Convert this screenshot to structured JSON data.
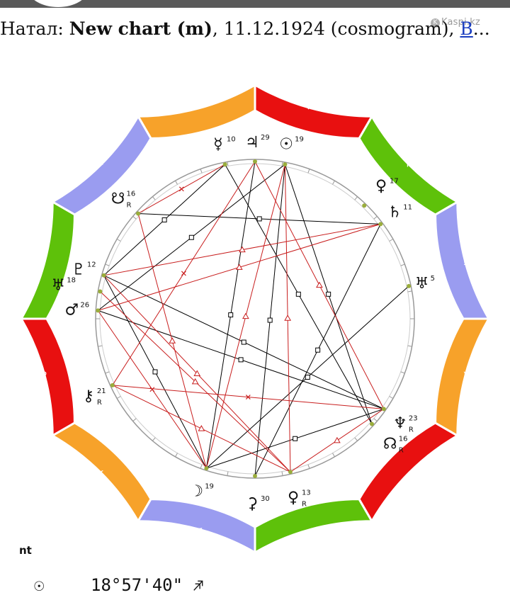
{
  "header": {
    "title_prefix": "Натал: ",
    "title_bold": "New chart (m)",
    "title_rest": ", 11.12.1924 (cosmogram), ",
    "title_link": "В",
    "title_ellipsis": "...",
    "watermark": "Kaspi.kz"
  },
  "chart": {
    "zodiac": [
      {
        "glyph": "♈",
        "color": "#e81010"
      },
      {
        "glyph": "♉",
        "color": "#f7a22a"
      },
      {
        "glyph": "♊",
        "color": "#9a9cf0"
      },
      {
        "glyph": "♋",
        "color": "#5ec10a"
      },
      {
        "glyph": "♌",
        "color": "#e81010"
      },
      {
        "glyph": "♍",
        "color": "#f7a22a"
      },
      {
        "glyph": "♎",
        "color": "#9a9cf0"
      },
      {
        "glyph": "♏",
        "color": "#5ec10a"
      },
      {
        "glyph": "♐",
        "color": "#e81010"
      },
      {
        "glyph": "♑",
        "color": "#f7a22a"
      },
      {
        "glyph": "♒",
        "color": "#9a9cf0"
      },
      {
        "glyph": "♓",
        "color": "#5ec10a"
      }
    ],
    "planets": [
      {
        "key": "moon",
        "glyph": "☽",
        "degree": "19",
        "retro": ""
      },
      {
        "key": "ceres",
        "glyph": "⚳",
        "degree": "30",
        "retro": ""
      },
      {
        "key": "venus_lower",
        "glyph": "♀",
        "degree": "13",
        "retro": "R"
      },
      {
        "key": "neptune",
        "glyph": "♆",
        "degree": "23",
        "retro": "R"
      },
      {
        "key": "node",
        "glyph": "☊",
        "degree": "16",
        "retro": "R"
      },
      {
        "key": "uranus",
        "glyph": "♅",
        "degree": "5",
        "retro": ""
      },
      {
        "key": "saturn",
        "glyph": "♄",
        "degree": "11",
        "retro": ""
      },
      {
        "key": "venus_upper",
        "glyph": "♀",
        "degree": "17",
        "retro": ""
      },
      {
        "key": "sun",
        "glyph": "☉",
        "degree": "19",
        "retro": ""
      },
      {
        "key": "jupiter",
        "glyph": "♃",
        "degree": "29",
        "retro": ""
      },
      {
        "key": "mercury",
        "glyph": "☿",
        "degree": "10",
        "retro": ""
      },
      {
        "key": "south_node",
        "glyph": "☋",
        "degree": "16",
        "retro": "R"
      },
      {
        "key": "pluto",
        "glyph": "♇",
        "degree": "12",
        "retro": ""
      },
      {
        "key": "uranus_alt",
        "glyph": "♅",
        "degree": "18",
        "retro": ""
      },
      {
        "key": "mars",
        "glyph": "♂",
        "degree": "26",
        "retro": ""
      },
      {
        "key": "chiron",
        "glyph": "⚷",
        "degree": "21",
        "retro": "R"
      }
    ],
    "colors": {
      "square": "#000000",
      "trine": "#c81e1e",
      "sextile": "#c81e1e",
      "ring": "#999999",
      "point": "#9aad3c"
    }
  },
  "footer": {
    "section_label": "nt",
    "sun_glyph": "☉",
    "sun_position": "18°57'40\"",
    "sun_sign": "♐"
  }
}
